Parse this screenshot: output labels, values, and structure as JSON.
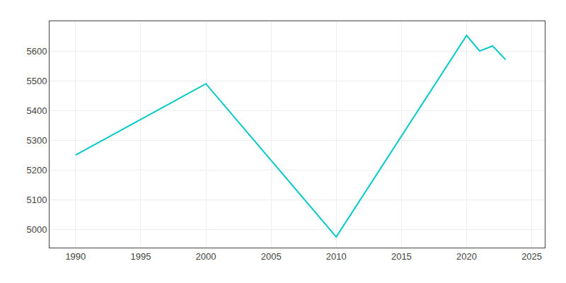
{
  "chart_data": {
    "type": "line",
    "x": [
      1990,
      2000,
      2010,
      2020,
      2021,
      2022,
      2023
    ],
    "values": [
      5251,
      5490,
      4976,
      5652,
      5600,
      5617,
      5571
    ],
    "color": "#00C8C8",
    "xlim": [
      1988,
      2026
    ],
    "ylim": [
      4940,
      5700
    ],
    "xticks": [
      1990,
      1995,
      2000,
      2005,
      2010,
      2015,
      2020,
      2025
    ],
    "yticks": [
      5000,
      5100,
      5200,
      5300,
      5400,
      5500,
      5600
    ],
    "grid": true
  }
}
